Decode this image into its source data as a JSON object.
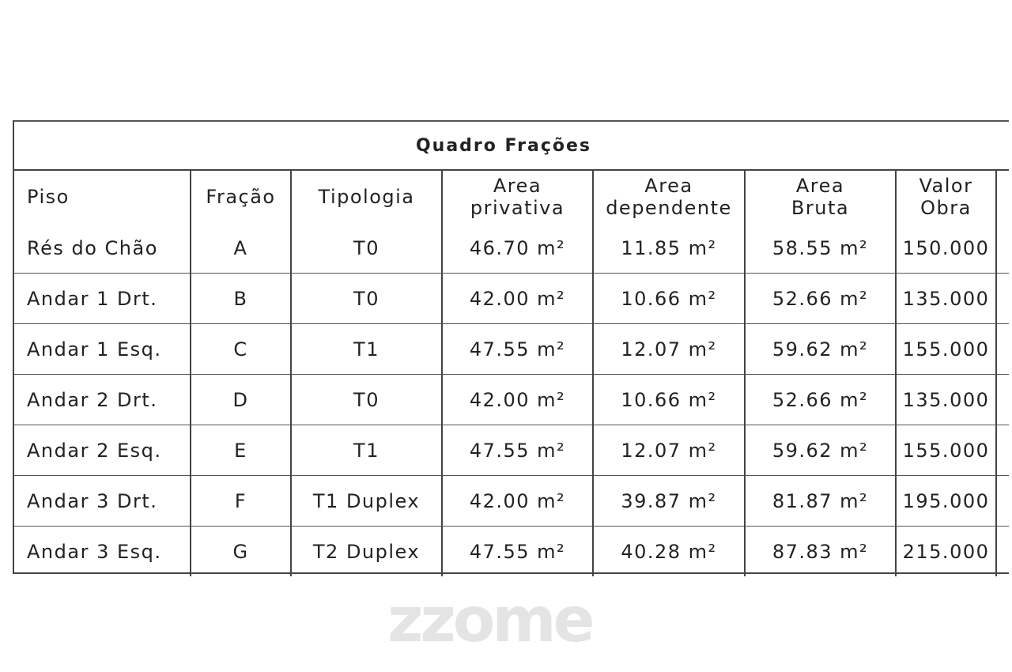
{
  "title": "Quadro Frações",
  "watermark": "zzome",
  "columns": [
    "Piso",
    "Fração",
    "Tipologia",
    "Area privativa",
    "Area dependente",
    "Area Bruta",
    "Valor Obra"
  ],
  "header": {
    "piso": "Piso",
    "fracao": "Fração",
    "tipologia": "Tipologia",
    "area_privativa": [
      "Area",
      "privativa"
    ],
    "area_dependente": [
      "Area",
      "dependente"
    ],
    "area_bruta": [
      "Area",
      "Bruta"
    ],
    "valor_obra": [
      "Valor",
      "Obra"
    ]
  },
  "rows": [
    [
      "Rés do Chão",
      "A",
      "T0",
      "46.70 m²",
      "11.85 m²",
      "58.55 m²",
      "150.000"
    ],
    [
      "Andar 1 Drt.",
      "B",
      "T0",
      "42.00 m²",
      "10.66 m²",
      "52.66 m²",
      "135.000"
    ],
    [
      "Andar 1 Esq.",
      "C",
      "T1",
      "47.55 m²",
      "12.07 m²",
      "59.62 m²",
      "155.000"
    ],
    [
      "Andar 2 Drt.",
      "D",
      "T0",
      "42.00 m²",
      "10.66 m²",
      "52.66 m²",
      "135.000"
    ],
    [
      "Andar 2 Esq.",
      "E",
      "T1",
      "47.55 m²",
      "12.07 m²",
      "59.62 m²",
      "155.000"
    ],
    [
      "Andar 3 Drt.",
      "F",
      "T1 Duplex",
      "42.00 m²",
      "39.87 m²",
      "81.87 m²",
      "195.000"
    ],
    [
      "Andar 3 Esq.",
      "G",
      "T2 Duplex",
      "47.55 m²",
      "40.28 m²",
      "87.83 m²",
      "215.000"
    ]
  ]
}
